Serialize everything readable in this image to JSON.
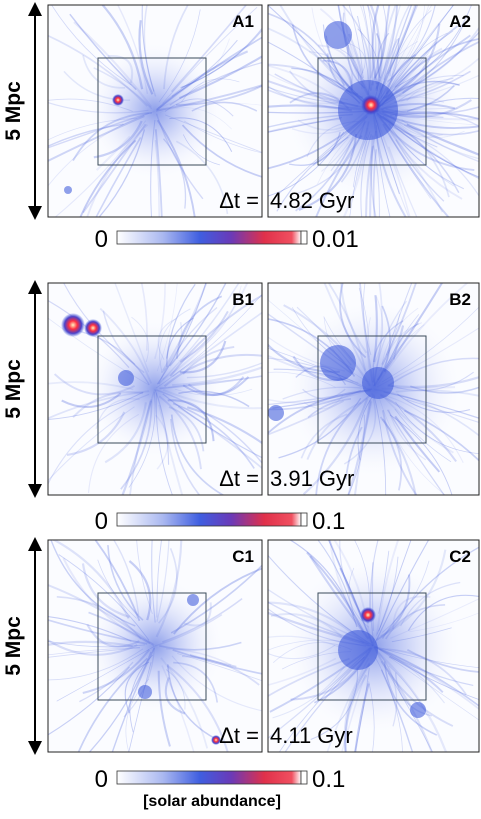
{
  "figure": {
    "rows": [
      {
        "scale_label": "5 Mpc",
        "panels": [
          {
            "label": "A1"
          },
          {
            "label": "A2"
          }
        ],
        "dt_label": "Δt =",
        "dt_value": "4.82 Gyr",
        "colorbar": {
          "min_label": "0",
          "max_label": "0.01"
        }
      },
      {
        "scale_label": "5 Mpc",
        "panels": [
          {
            "label": "B1"
          },
          {
            "label": "B2"
          }
        ],
        "dt_label": "Δt =",
        "dt_value": "3.91 Gyr",
        "colorbar": {
          "min_label": "0",
          "max_label": "0.1"
        }
      },
      {
        "scale_label": "5 Mpc",
        "panels": [
          {
            "label": "C1"
          },
          {
            "label": "C2"
          }
        ],
        "dt_label": "Δt =",
        "dt_value": "4.11 Gyr",
        "colorbar": {
          "min_label": "0",
          "max_label": "0.1"
        }
      }
    ],
    "colorbar_unit": "[solar abundance]"
  }
}
